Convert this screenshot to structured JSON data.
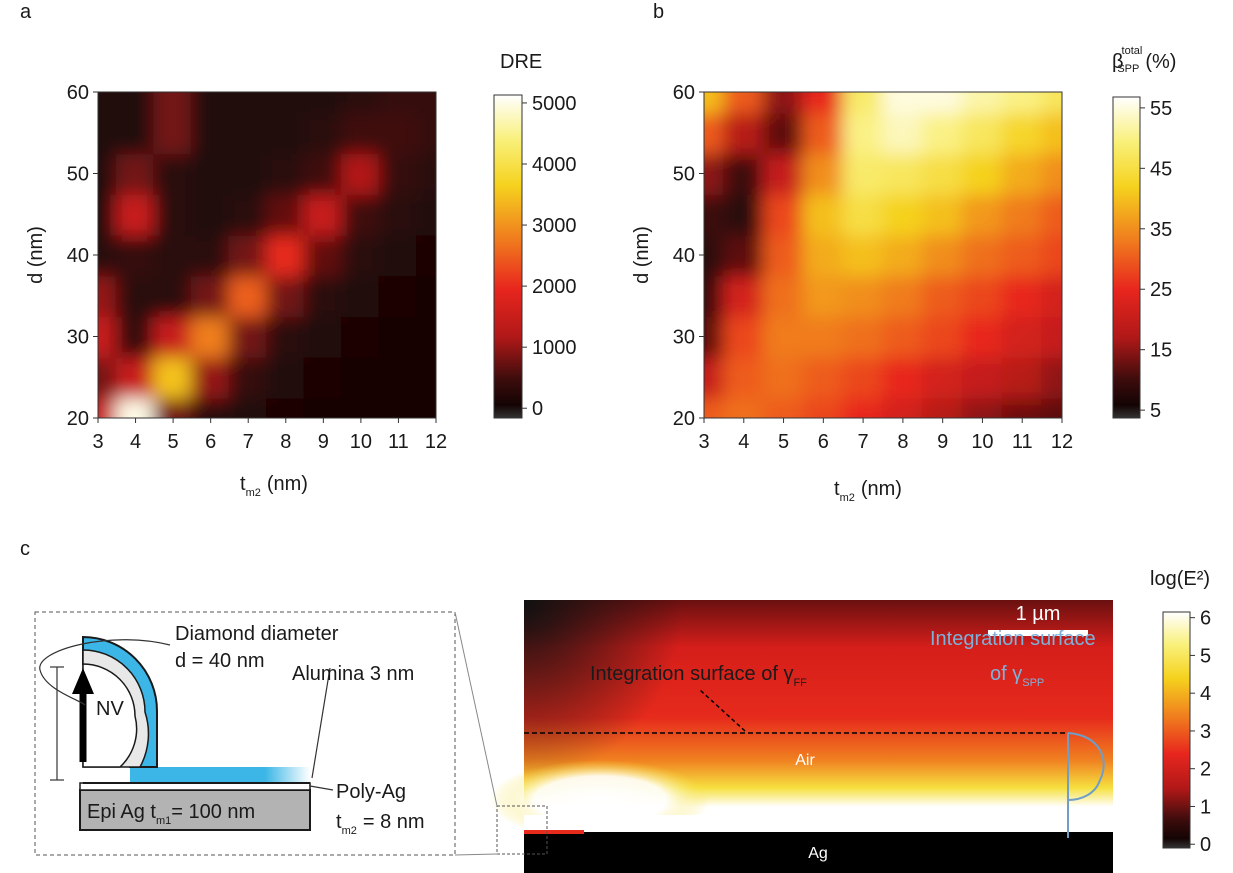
{
  "chart_data": [
    {
      "type": "heatmap",
      "panel": "a",
      "x_label": {
        "main": "t",
        "sub": "m2",
        "rest": "(nm)"
      },
      "y_label": "d (nm)",
      "colorbar_label": "DRE",
      "x": [
        3,
        4,
        5,
        6,
        7,
        8,
        9,
        10,
        11,
        12
      ],
      "y": [
        20,
        25,
        30,
        35,
        40,
        45,
        50,
        55,
        60
      ],
      "values": [
        [
          1500,
          5000,
          800,
          300,
          200,
          150,
          100,
          100,
          100,
          100
        ],
        [
          800,
          1500,
          3500,
          1000,
          400,
          200,
          150,
          100,
          100,
          100
        ],
        [
          1500,
          400,
          1500,
          2800,
          800,
          300,
          200,
          150,
          100,
          100
        ],
        [
          1000,
          300,
          300,
          800,
          2500,
          800,
          300,
          200,
          150,
          100
        ],
        [
          300,
          400,
          300,
          300,
          800,
          2000,
          700,
          300,
          200,
          150
        ],
        [
          200,
          1500,
          300,
          200,
          300,
          700,
          1500,
          500,
          300,
          200
        ],
        [
          200,
          800,
          300,
          200,
          200,
          300,
          500,
          1200,
          400,
          300
        ],
        [
          200,
          200,
          800,
          200,
          200,
          200,
          300,
          500,
          500,
          400
        ],
        [
          200,
          200,
          800,
          200,
          200,
          200,
          200,
          300,
          400,
          400
        ]
      ],
      "xlim": [
        3,
        12
      ],
      "ylim": [
        20,
        60
      ],
      "xticks": [
        3,
        4,
        5,
        6,
        7,
        8,
        9,
        10,
        11,
        12
      ],
      "yticks": [
        20,
        30,
        40,
        50,
        60
      ],
      "clim": [
        -160,
        5130
      ],
      "cticks": [
        0,
        1000,
        2000,
        3000,
        4000,
        5000
      ]
    },
    {
      "type": "heatmap",
      "panel": "b",
      "x_label": {
        "main": "t",
        "sub": "m2",
        "rest": "(nm)"
      },
      "y_label": "d (nm)",
      "colorbar_label": {
        "main": "β",
        "sup": "total",
        "sub": "SPP",
        "rest": "(%)"
      },
      "x": [
        3,
        4,
        5,
        6,
        7,
        8,
        9,
        10,
        11,
        12
      ],
      "y": [
        20,
        25,
        30,
        35,
        40,
        45,
        50,
        55,
        60
      ],
      "values": [
        [
          30,
          32,
          30,
          28,
          25,
          22,
          18,
          15,
          13,
          12
        ],
        [
          20,
          30,
          32,
          30,
          28,
          25,
          22,
          20,
          18,
          15
        ],
        [
          12,
          28,
          33,
          33,
          32,
          30,
          28,
          25,
          22,
          20
        ],
        [
          10,
          22,
          32,
          36,
          35,
          33,
          30,
          28,
          25,
          22
        ],
        [
          8,
          12,
          30,
          38,
          40,
          38,
          35,
          32,
          30,
          28
        ],
        [
          10,
          8,
          28,
          40,
          45,
          42,
          40,
          36,
          33,
          30
        ],
        [
          15,
          10,
          20,
          35,
          48,
          47,
          45,
          42,
          38,
          35
        ],
        [
          30,
          18,
          12,
          30,
          50,
          53,
          50,
          47,
          43,
          40
        ],
        [
          40,
          30,
          15,
          25,
          48,
          55,
          55,
          52,
          50,
          47
        ]
      ],
      "xlim": [
        3,
        12
      ],
      "ylim": [
        20,
        60
      ],
      "xticks": [
        3,
        4,
        5,
        6,
        7,
        8,
        9,
        10,
        11,
        12
      ],
      "yticks": [
        20,
        30,
        40,
        50,
        60
      ],
      "clim": [
        3.7,
        56.8
      ],
      "cticks": [
        5,
        15,
        25,
        35,
        45,
        55
      ]
    },
    {
      "type": "fieldmap",
      "panel": "c",
      "colorbar_label": "log(E²)",
      "clim": [
        -0.1,
        6.15
      ],
      "cticks": [
        0,
        1,
        2,
        3,
        4,
        5,
        6
      ],
      "scale_bar": "1 µm",
      "ff_surface": {
        "main": "Integration surface of γ",
        "sub": "FF"
      },
      "spp_surface": {
        "line1": "Integration surface",
        "line2": "of γ",
        "sub": "SPP"
      },
      "air": "Air",
      "ag": "Ag",
      "inset": {
        "diameter_line1": "Diamond diameter",
        "diameter_line2": "d = 40 nm",
        "alumina": "Alumina 3 nm",
        "nv": "NV",
        "poly_ag": "Poly-Ag",
        "tm2": {
          "main": "t",
          "sub": "m2",
          "rest": "= 8 nm"
        },
        "epi": {
          "main": "Epi Ag t",
          "sub": "m1",
          "rest": "= 100 nm"
        }
      }
    }
  ]
}
